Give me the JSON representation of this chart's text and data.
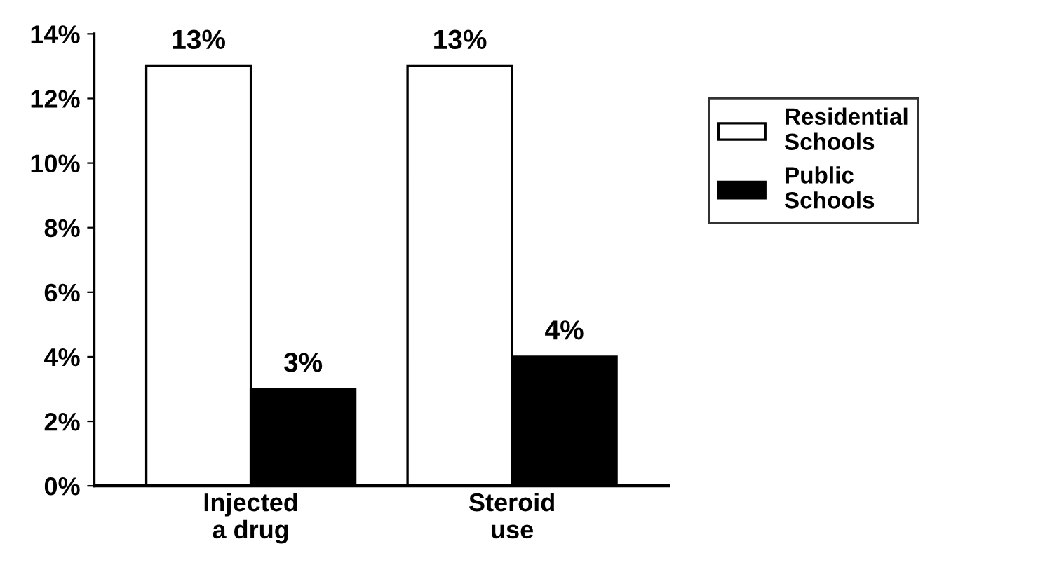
{
  "chart_data": {
    "type": "bar",
    "categories": [
      "Injected\na drug",
      "Steroid\nuse"
    ],
    "series": [
      {
        "name": "Residential\nSchools",
        "color": "#ffffff",
        "values": [
          13,
          13
        ],
        "value_labels": [
          "13%",
          "13%"
        ]
      },
      {
        "name": "Public\nSchools",
        "color": "#000000",
        "values": [
          3,
          4
        ],
        "value_labels": [
          "3%",
          "4%"
        ]
      }
    ],
    "ylim": [
      0,
      14
    ],
    "yticks": [
      {
        "value": 0,
        "label": "0%"
      },
      {
        "value": 2,
        "label": "2%"
      },
      {
        "value": 4,
        "label": "4%"
      },
      {
        "value": 6,
        "label": "6%"
      },
      {
        "value": 8,
        "label": "8%"
      },
      {
        "value": 10,
        "label": "10%"
      },
      {
        "value": 12,
        "label": "12%"
      },
      {
        "value": 14,
        "label": "14%"
      }
    ],
    "grid": false,
    "legend": "right"
  }
}
